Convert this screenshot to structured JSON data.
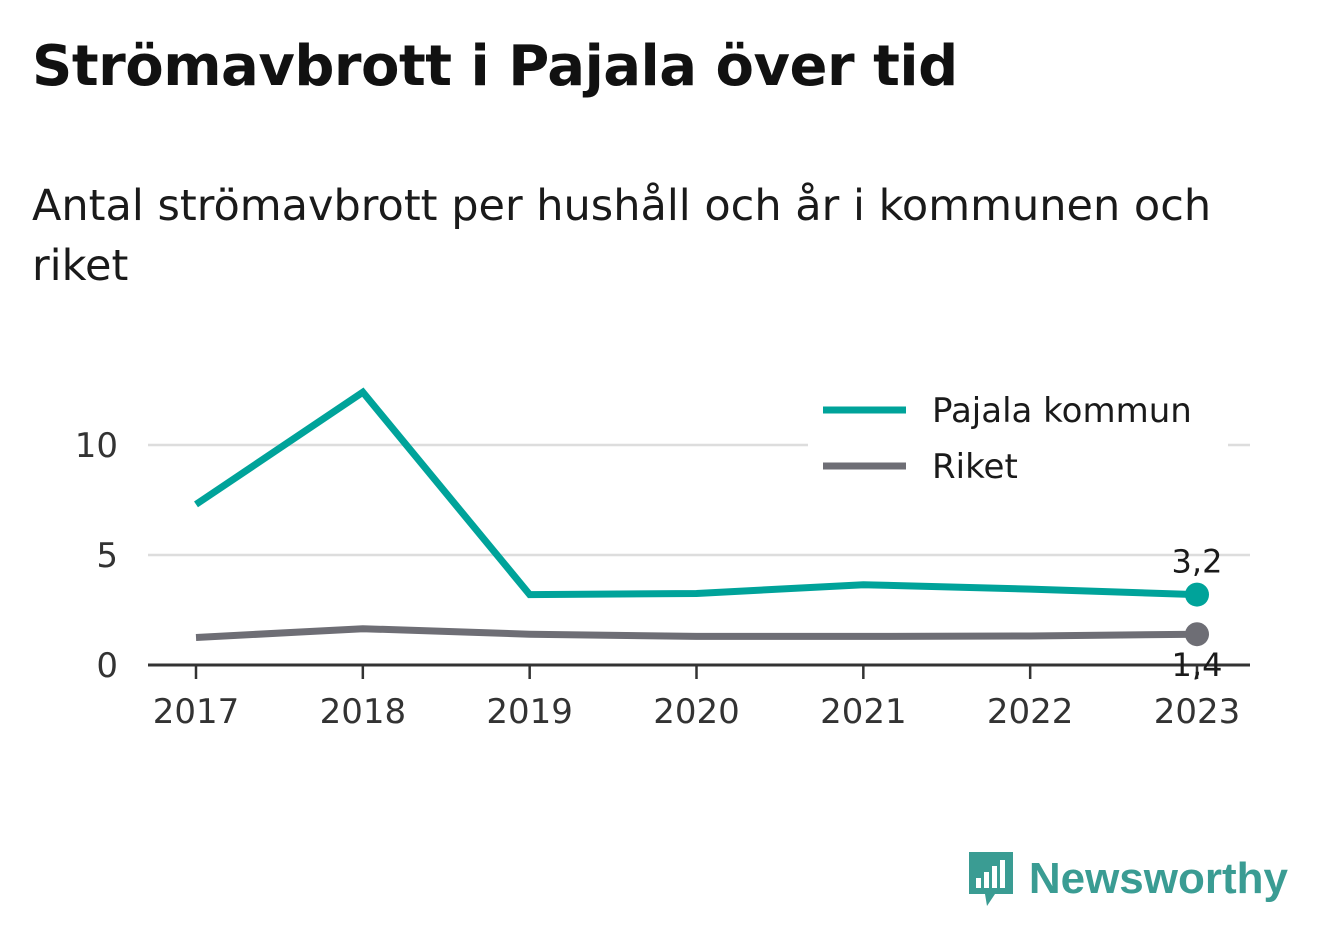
{
  "header": {
    "title": "Strömavbrott i Pajala över tid",
    "subtitle": "Antal strömavbrott per hushåll och år i kommunen och riket"
  },
  "chart_data": {
    "type": "line",
    "x": [
      "2017",
      "2018",
      "2019",
      "2020",
      "2021",
      "2022",
      "2023"
    ],
    "series": [
      {
        "name": "Pajala kommun",
        "color": "#00a39a",
        "values": [
          7.3,
          12.4,
          3.2,
          3.25,
          3.65,
          3.45,
          3.2
        ],
        "end_label": "3,2"
      },
      {
        "name": "Riket",
        "color": "#6e6e75",
        "values": [
          1.25,
          1.65,
          1.4,
          1.3,
          1.3,
          1.32,
          1.4
        ],
        "end_label": "1,4"
      }
    ],
    "ylim": [
      0,
      13
    ],
    "yticks": [
      0,
      5,
      10
    ],
    "ytick_labels": [
      "0",
      "5",
      "10"
    ],
    "grid": true,
    "legend_position": "top-right"
  },
  "branding": {
    "name": "Newsworthy",
    "icon": "bar-chart-bubble-icon",
    "color": "#3a9c93"
  }
}
